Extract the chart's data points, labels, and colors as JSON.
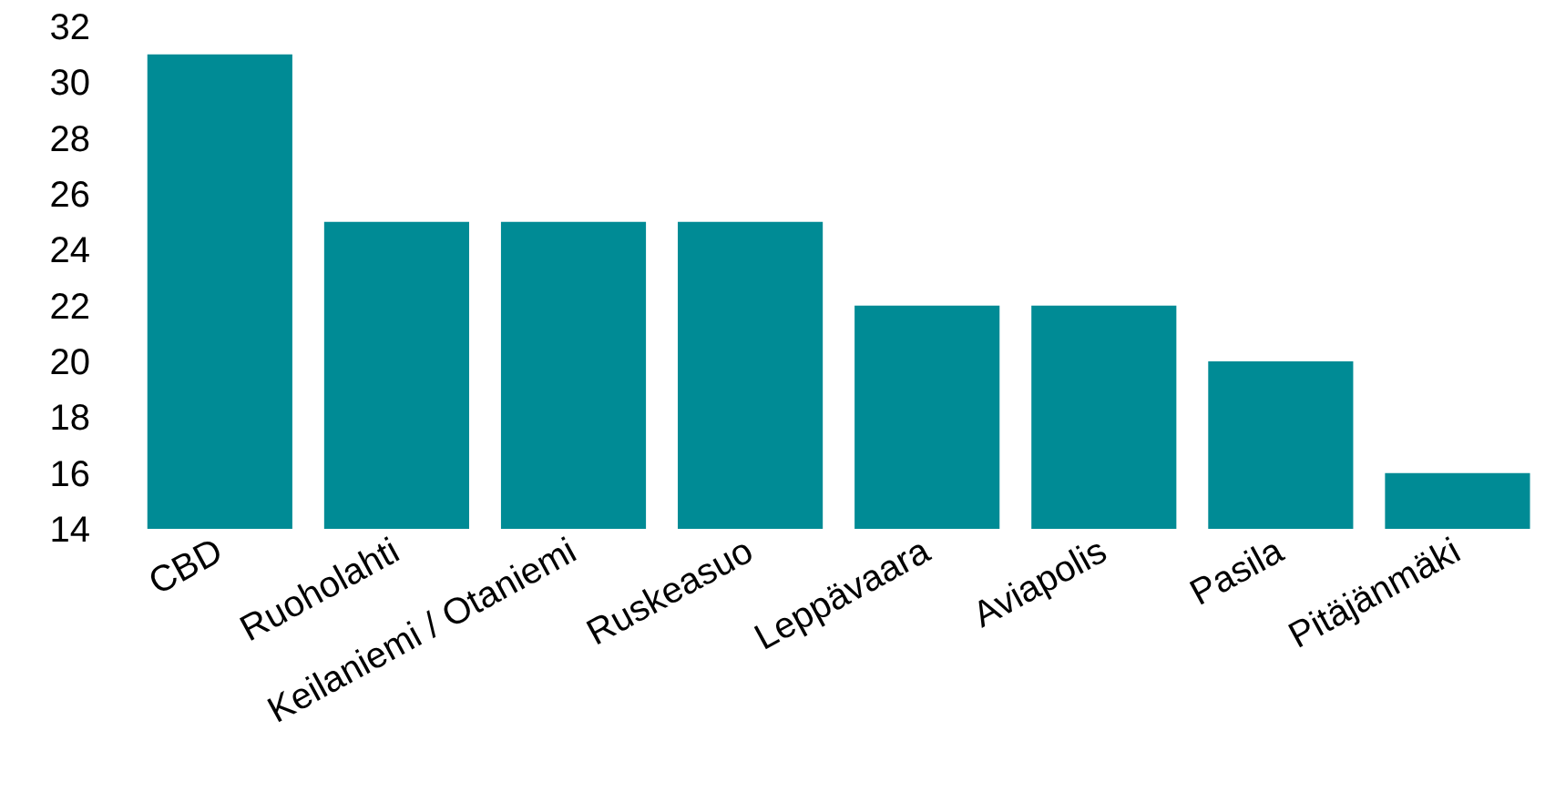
{
  "chart_data": {
    "type": "bar",
    "categories": [
      "CBD",
      "Ruoholahti",
      "Keilaniemi / Otaniemi",
      "Ruskeasuo",
      "Leppävaara",
      "Aviapolis",
      "Pasila",
      "Pitäjänmäki"
    ],
    "values": [
      31,
      25,
      25,
      25,
      22,
      22,
      20,
      16
    ],
    "color": "#008b95",
    "ylim": [
      14,
      32
    ],
    "yticks": [
      14,
      16,
      18,
      20,
      22,
      24,
      26,
      28,
      30,
      32
    ],
    "grid": false
  }
}
